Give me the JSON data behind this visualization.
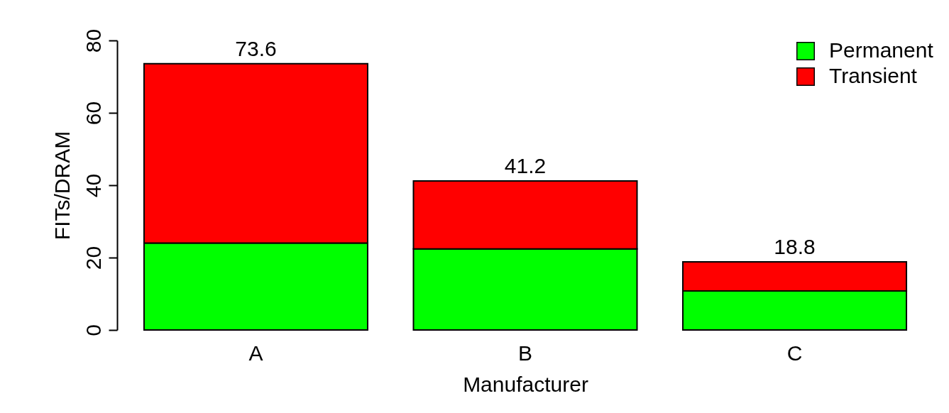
{
  "chart_data": {
    "type": "bar",
    "stacked": true,
    "xlabel": "Manufacturer",
    "ylabel": "FITs/DRAM",
    "categories": [
      "A",
      "B",
      "C"
    ],
    "series": [
      {
        "name": "Permanent",
        "color": "#00ff00",
        "values": [
          24.0,
          22.4,
          10.8
        ]
      },
      {
        "name": "Transient",
        "color": "#ff0000",
        "values": [
          49.6,
          18.8,
          8.0
        ]
      }
    ],
    "totals": [
      "73.6",
      "41.2",
      "18.8"
    ],
    "ylim": [
      0,
      80
    ],
    "yticks": [
      0,
      20,
      40,
      60,
      80
    ],
    "grid": false,
    "legend": "top right"
  }
}
